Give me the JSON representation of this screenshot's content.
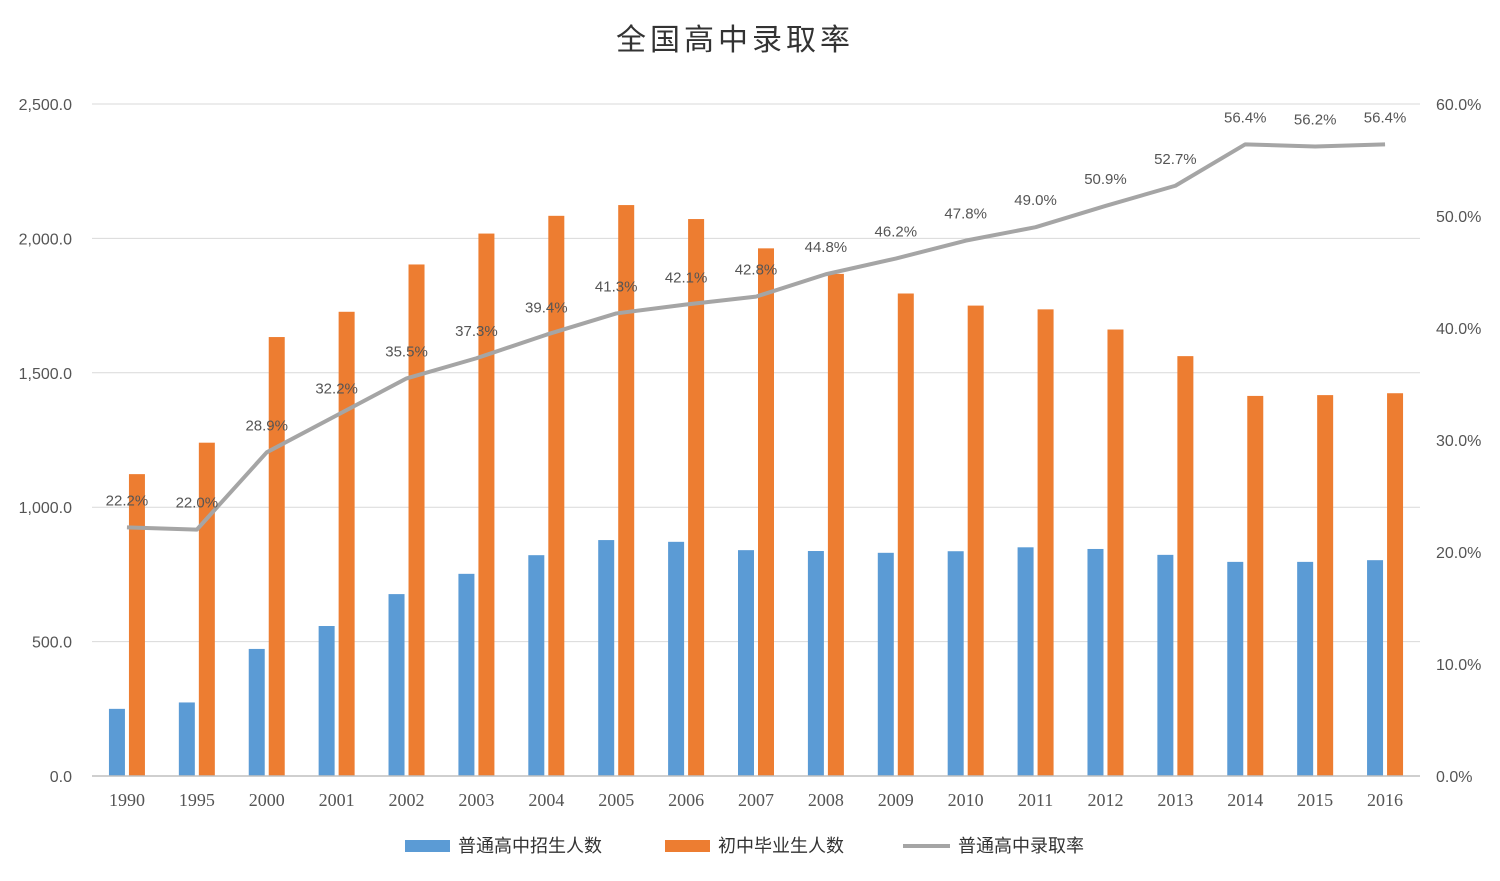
{
  "chart_data": {
    "type": "bar",
    "title": "全国高中录取率",
    "categories": [
      "1990",
      "1995",
      "2000",
      "2001",
      "2002",
      "2003",
      "2004",
      "2005",
      "2006",
      "2007",
      "2008",
      "2009",
      "2010",
      "2011",
      "2012",
      "2013",
      "2014",
      "2015",
      "2016"
    ],
    "series": [
      {
        "name": "普通高中招生人数",
        "type": "bar",
        "axis": "left",
        "color": "#5b9bd5",
        "values": [
          249.8,
          273.6,
          472.7,
          558.0,
          676.7,
          752.1,
          821.5,
          877.7,
          871.2,
          840.2,
          837.0,
          830.3,
          836.2,
          850.8,
          844.6,
          822.7,
          796.6,
          796.6,
          802.9
        ]
      },
      {
        "name": "初中毕业生人数",
        "type": "bar",
        "axis": "left",
        "color": "#ed7d31",
        "values": [
          1123.0,
          1240.0,
          1633.0,
          1727.0,
          1903.0,
          2018.0,
          2084.0,
          2124.0,
          2072.0,
          1963.0,
          1868.0,
          1795.0,
          1750.0,
          1736.0,
          1661.0,
          1562.0,
          1414.0,
          1417.0,
          1424.0
        ]
      },
      {
        "name": "普通高中录取率",
        "type": "line",
        "axis": "right",
        "color": "#a5a5a5",
        "values": [
          22.2,
          22.0,
          28.9,
          32.2,
          35.5,
          37.3,
          39.4,
          41.3,
          42.1,
          42.8,
          44.8,
          46.2,
          47.8,
          49.0,
          50.9,
          52.7,
          56.4,
          56.2,
          56.4
        ],
        "labels": [
          "22.2%",
          "22.0%",
          "28.9%",
          "32.2%",
          "35.5%",
          "37.3%",
          "39.4%",
          "41.3%",
          "42.1%",
          "42.8%",
          "44.8%",
          "46.2%",
          "47.8%",
          "49.0%",
          "50.9%",
          "52.7%",
          "56.4%",
          "56.2%",
          "56.4%"
        ]
      }
    ],
    "y_left": {
      "ylim": [
        0,
        2500
      ],
      "ticks": [
        "0.0",
        "500.0",
        "1,000.0",
        "1,500.0",
        "2,000.0",
        "2,500.0"
      ]
    },
    "y_right": {
      "ylim": [
        0,
        60
      ],
      "ticks": [
        "0.0%",
        "10.0%",
        "20.0%",
        "30.0%",
        "40.0%",
        "50.0%",
        "60.0%"
      ]
    },
    "grid": true,
    "legend": "bottom"
  }
}
